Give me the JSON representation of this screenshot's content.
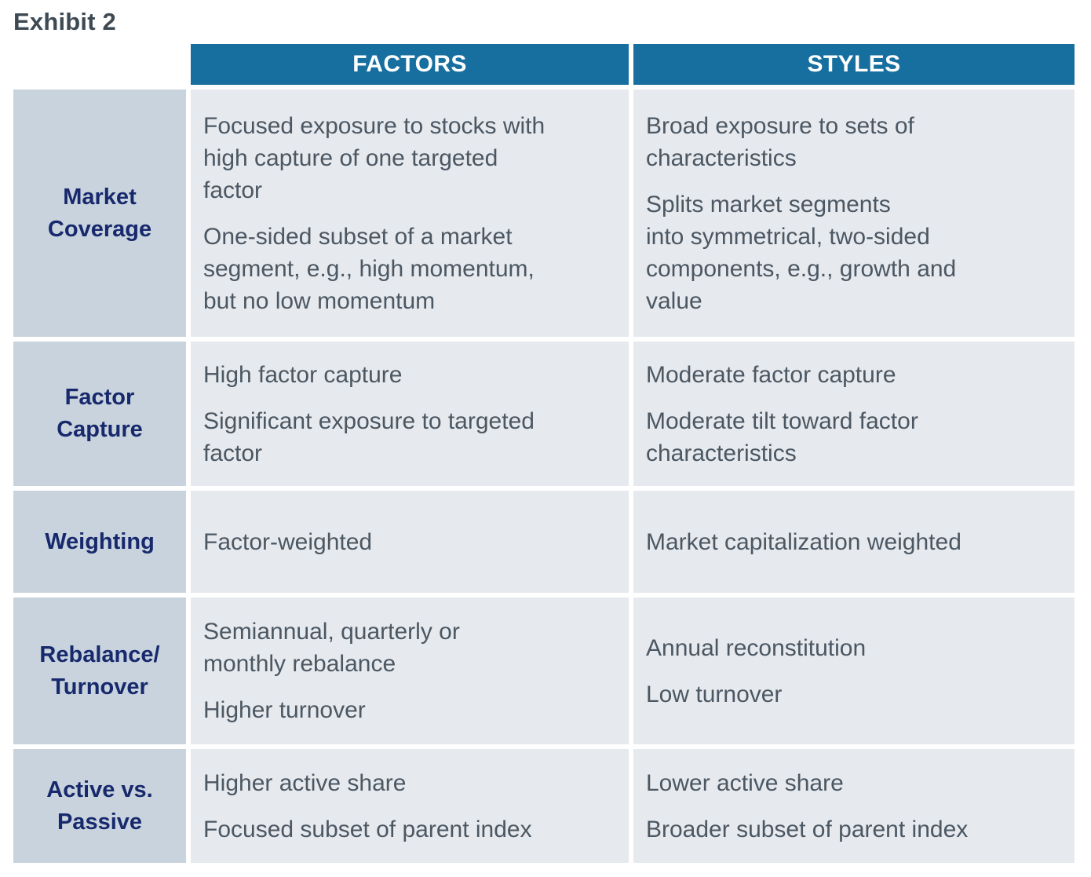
{
  "page": {
    "title": "Exhibit 2"
  },
  "colors": {
    "header_bg": "#176f9f",
    "header_text": "#ffffff",
    "row_label_bg": "#c9d3dd",
    "row_label_text": "#17296d",
    "cell_bg": "#e6e9ed",
    "cell_text": "#4b5763",
    "title_text": "#3d4953"
  },
  "table": {
    "columns": [
      {
        "key": "factors",
        "label": "FACTORS"
      },
      {
        "key": "styles",
        "label": "STYLES"
      }
    ],
    "rows": [
      {
        "label": "Market\nCoverage",
        "factors": [
          "Focused exposure to stocks with\nhigh capture of one targeted\nfactor",
          "One-sided subset of a market\nsegment, e.g., high momentum,\nbut no low momentum"
        ],
        "styles": [
          "Broad exposure to sets of\ncharacteristics",
          "Splits market segments\ninto symmetrical, two-sided\ncomponents, e.g., growth and\nvalue"
        ]
      },
      {
        "label": "Factor\nCapture",
        "factors": [
          "High factor capture",
          "Significant exposure to targeted\nfactor"
        ],
        "styles": [
          "Moderate factor capture",
          "Moderate tilt toward factor\ncharacteristics"
        ]
      },
      {
        "label": "Weighting",
        "factors": [
          "Factor-weighted"
        ],
        "styles": [
          "Market capitalization weighted"
        ]
      },
      {
        "label": "Rebalance/\nTurnover",
        "factors": [
          "Semiannual, quarterly or\nmonthly rebalance",
          "Higher turnover"
        ],
        "styles": [
          "Annual reconstitution",
          "Low turnover"
        ]
      },
      {
        "label": "Active vs.\nPassive",
        "factors": [
          "Higher active share",
          "Focused subset of parent index"
        ],
        "styles": [
          "Lower active share",
          "Broader subset of parent index"
        ]
      }
    ]
  }
}
